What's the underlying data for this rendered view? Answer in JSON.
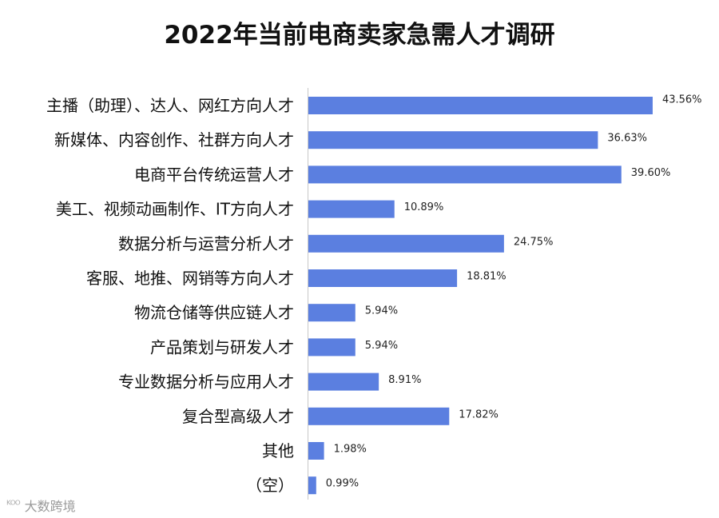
{
  "chart_data": {
    "type": "bar",
    "orientation": "horizontal",
    "title": "2022年当前电商卖家急需人才调研",
    "categories": [
      "主播（助理）、达人、网红方向人才",
      "新媒体、内容创作、社群方向人才",
      "电商平台传统运营人才",
      "美工、视频动画制作、IT方向人才",
      "数据分析与运营分析人才",
      "客服、地推、网销等方向人才",
      "物流仓储等供应链人才",
      "产品策划与研发人才",
      "专业数据分析与应用人才",
      "复合型高级人才",
      "其他",
      "（空）"
    ],
    "values": [
      43.56,
      36.63,
      39.6,
      10.89,
      24.75,
      18.81,
      5.94,
      5.94,
      8.91,
      17.82,
      1.98,
      0.99
    ],
    "data_labels": [
      "43.56%",
      "36.63%",
      "39.60%",
      "10.89%",
      "24.75%",
      "18.81%",
      "5.94%",
      "5.94%",
      "8.91%",
      "17.82%",
      "1.98%",
      "0.99%"
    ],
    "xlim": [
      0,
      47
    ],
    "grid": false,
    "bar_color": "#5b7fe0"
  },
  "watermark": {
    "logo": "ᴷᴼᴼ",
    "text": "大数跨境"
  }
}
